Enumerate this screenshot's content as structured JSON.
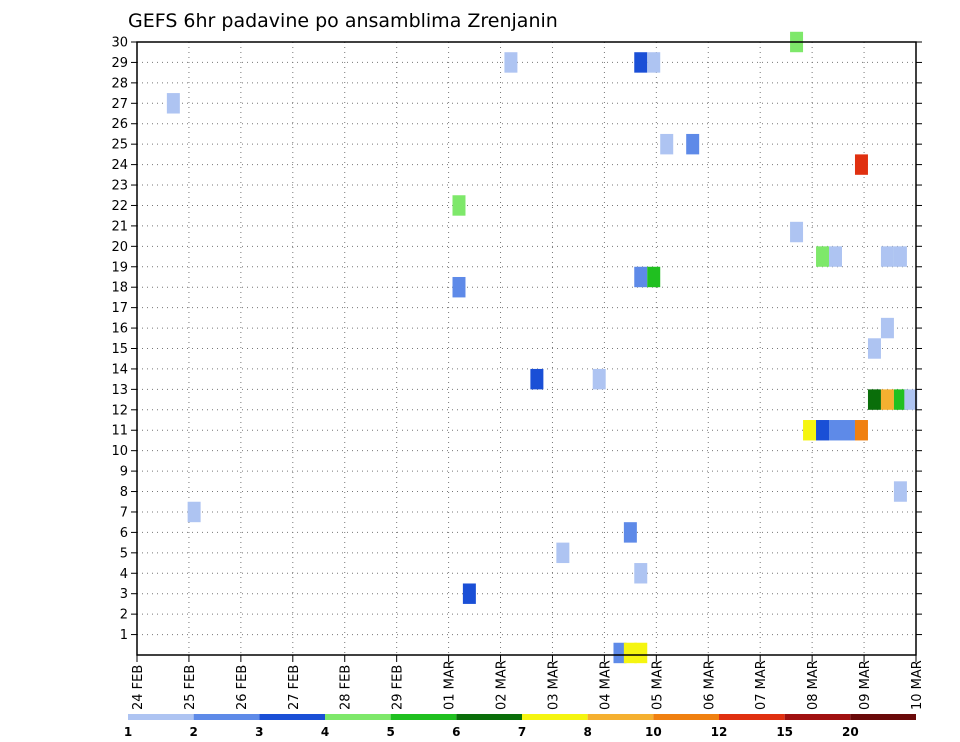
{
  "chart_data": {
    "type": "heatmap",
    "title": "GEFS 6hr padavine po ansamblima Zrenjanin",
    "xlabel": "",
    "ylabel": "",
    "x_tick_labels": [
      "24 FEB",
      "25 FEB",
      "26 FEB",
      "27 FEB",
      "28 FEB",
      "29 FEB",
      "01 MAR",
      "02 MAR",
      "03 MAR",
      "04 MAR",
      "05 MAR",
      "06 MAR",
      "07 MAR",
      "08 MAR",
      "09 MAR",
      "10 MAR"
    ],
    "xlim_days": [
      0,
      15
    ],
    "y_ticks": [
      1,
      2,
      3,
      4,
      5,
      6,
      7,
      8,
      9,
      10,
      11,
      12,
      13,
      14,
      15,
      16,
      17,
      18,
      19,
      20,
      21,
      22,
      23,
      24,
      25,
      26,
      27,
      28,
      29,
      30
    ],
    "ylim": [
      0,
      30
    ],
    "grid": true,
    "colorbar": {
      "levels": [
        "1",
        "2",
        "3",
        "4",
        "5",
        "6",
        "7",
        "8",
        "10",
        "12",
        "15",
        "20"
      ],
      "colors": [
        "#aec4f2",
        "#5e8ae8",
        "#1a4fd6",
        "#7ee86a",
        "#20c020",
        "#0a6e0a",
        "#f5f510",
        "#f5b030",
        "#f08010",
        "#e03010",
        "#a01010",
        "#6a0a0a"
      ]
    },
    "cells": [
      {
        "day": 0.7,
        "member": 27,
        "color": "#aec4f2"
      },
      {
        "day": 1.1,
        "member": 7,
        "color": "#aec4f2"
      },
      {
        "day": 6.2,
        "member": 22,
        "color": "#7ee86a"
      },
      {
        "day": 6.2,
        "member": 18,
        "color": "#5e8ae8"
      },
      {
        "day": 6.4,
        "member": 3,
        "color": "#1a4fd6"
      },
      {
        "day": 7.2,
        "member": 29,
        "color": "#aec4f2"
      },
      {
        "day": 7.7,
        "member": 13.5,
        "color": "#1a4fd6"
      },
      {
        "day": 8.2,
        "member": 5,
        "color": "#aec4f2"
      },
      {
        "day": 8.9,
        "member": 13.5,
        "color": "#aec4f2"
      },
      {
        "day": 9.3,
        "member": 0.1,
        "color": "#5e8ae8"
      },
      {
        "day": 9.5,
        "member": 0.1,
        "color": "#f5f510"
      },
      {
        "day": 9.7,
        "member": 0.1,
        "color": "#f5f510"
      },
      {
        "day": 9.5,
        "member": 6,
        "color": "#5e8ae8"
      },
      {
        "day": 9.7,
        "member": 4,
        "color": "#aec4f2"
      },
      {
        "day": 9.7,
        "member": 29,
        "color": "#1a4fd6"
      },
      {
        "day": 9.95,
        "member": 29,
        "color": "#aec4f2"
      },
      {
        "day": 9.7,
        "member": 18.5,
        "color": "#5e8ae8"
      },
      {
        "day": 9.95,
        "member": 18.5,
        "color": "#20c020"
      },
      {
        "day": 10.2,
        "member": 25,
        "color": "#aec4f2"
      },
      {
        "day": 10.7,
        "member": 25,
        "color": "#5e8ae8"
      },
      {
        "day": 12.7,
        "member": 30,
        "color": "#7ee86a"
      },
      {
        "day": 12.7,
        "member": 20.7,
        "color": "#aec4f2"
      },
      {
        "day": 12.95,
        "member": 11,
        "color": "#f5f510"
      },
      {
        "day": 13.2,
        "member": 11,
        "color": "#1a4fd6"
      },
      {
        "day": 13.45,
        "member": 11,
        "color": "#5e8ae8"
      },
      {
        "day": 13.7,
        "member": 11,
        "color": "#5e8ae8"
      },
      {
        "day": 13.95,
        "member": 11,
        "color": "#f08010"
      },
      {
        "day": 13.2,
        "member": 19.5,
        "color": "#7ee86a"
      },
      {
        "day": 13.45,
        "member": 19.5,
        "color": "#aec4f2"
      },
      {
        "day": 13.95,
        "member": 24,
        "color": "#e03010"
      },
      {
        "day": 14.2,
        "member": 15,
        "color": "#aec4f2"
      },
      {
        "day": 14.2,
        "member": 12.5,
        "color": "#0a6e0a"
      },
      {
        "day": 14.45,
        "member": 12.5,
        "color": "#f5b030"
      },
      {
        "day": 14.7,
        "member": 12.5,
        "color": "#20c020"
      },
      {
        "day": 14.9,
        "member": 12.5,
        "color": "#aec4f2"
      },
      {
        "day": 14.45,
        "member": 19.5,
        "color": "#aec4f2"
      },
      {
        "day": 14.7,
        "member": 19.5,
        "color": "#aec4f2"
      },
      {
        "day": 14.45,
        "member": 16,
        "color": "#aec4f2"
      },
      {
        "day": 14.7,
        "member": 8,
        "color": "#aec4f2"
      }
    ]
  }
}
